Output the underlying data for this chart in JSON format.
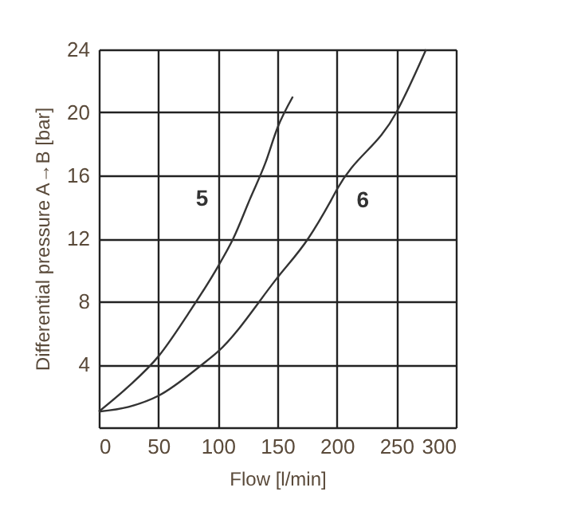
{
  "chart_data": {
    "type": "line",
    "xlabel": "Flow [l/min]",
    "ylabel": "Differential pressure A→B [bar]",
    "xlim": [
      0,
      300
    ],
    "xticks": [
      0,
      50,
      100,
      150,
      200,
      250,
      300
    ],
    "ylim": [
      0,
      24
    ],
    "yticks": [
      {
        "value": 0,
        "label": null
      },
      4,
      8,
      12,
      16,
      20,
      24
    ],
    "grid": true,
    "legend": false,
    "marker": "none",
    "line_style": "solid",
    "series": [
      {
        "name": "5",
        "color": "#333333",
        "x": [
          0,
          25,
          50,
          75,
          100,
          113,
          127,
          140,
          150,
          163
        ],
        "values": [
          1,
          2.6,
          4.5,
          7.2,
          10.2,
          12,
          14.5,
          16.8,
          19,
          21
        ]
      },
      {
        "name": "6",
        "color": "#333333",
        "x": [
          0,
          25,
          50,
          87,
          100,
          150,
          176,
          195,
          200,
          250,
          275
        ],
        "values": [
          1,
          1.3,
          2,
          4,
          4.8,
          9.5,
          12,
          14.4,
          15.1,
          20,
          24
        ]
      }
    ]
  }
}
